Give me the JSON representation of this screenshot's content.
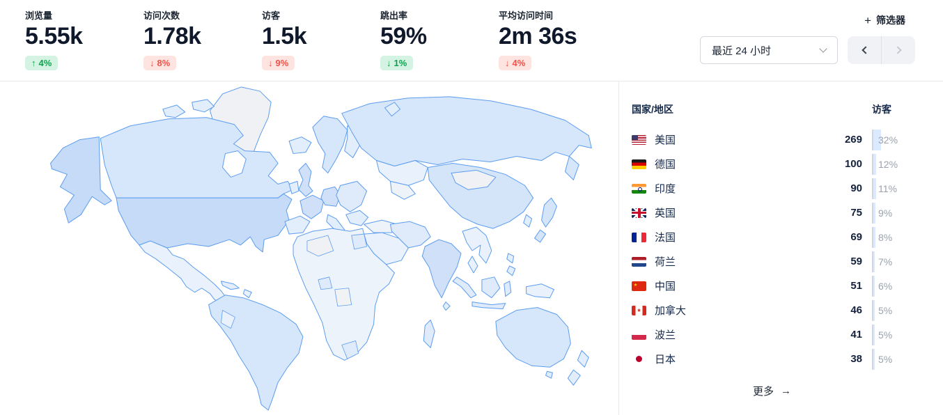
{
  "stats": [
    {
      "label": "浏览量",
      "value": "5.55k",
      "arrow": "↑",
      "change": "4%",
      "trend": "pos"
    },
    {
      "label": "访问次数",
      "value": "1.78k",
      "arrow": "↓",
      "change": "8%",
      "trend": "neg"
    },
    {
      "label": "访客",
      "value": "1.5k",
      "arrow": "↓",
      "change": "9%",
      "trend": "neg"
    },
    {
      "label": "跳出率",
      "value": "59%",
      "arrow": "↓",
      "change": "1%",
      "trend": "pos"
    },
    {
      "label": "平均访问时间",
      "value": "2m 36s",
      "arrow": "↓",
      "change": "4%",
      "trend": "neg"
    }
  ],
  "controls": {
    "filter_plus": "+",
    "filter_label": "筛选器",
    "date_range": "最近 24 小时",
    "next_disabled": true
  },
  "countries_panel": {
    "header_country": "国家/地区",
    "header_visitors": "访客",
    "rows": [
      {
        "flag": "us",
        "name": "美国",
        "visitors": "269",
        "percent": "32%",
        "pct": 32
      },
      {
        "flag": "de",
        "name": "德国",
        "visitors": "100",
        "percent": "12%",
        "pct": 12
      },
      {
        "flag": "in",
        "name": "印度",
        "visitors": "90",
        "percent": "11%",
        "pct": 11
      },
      {
        "flag": "gb",
        "name": "英国",
        "visitors": "75",
        "percent": "9%",
        "pct": 9
      },
      {
        "flag": "fr",
        "name": "法国",
        "visitors": "69",
        "percent": "8%",
        "pct": 8
      },
      {
        "flag": "nl",
        "name": "荷兰",
        "visitors": "59",
        "percent": "7%",
        "pct": 7
      },
      {
        "flag": "cn",
        "name": "中国",
        "visitors": "51",
        "percent": "6%",
        "pct": 6
      },
      {
        "flag": "ca",
        "name": "加拿大",
        "visitors": "46",
        "percent": "5%",
        "pct": 5
      },
      {
        "flag": "pl",
        "name": "波兰",
        "visitors": "41",
        "percent": "5%",
        "pct": 5
      },
      {
        "flag": "jp",
        "name": "日本",
        "visitors": "38",
        "percent": "5%",
        "pct": 5
      }
    ],
    "more_label": "更多",
    "more_arrow": "→"
  },
  "colors": {
    "positive_bg": "#d4f3e2",
    "positive_text": "#12a150",
    "negative_bg": "#fde4e1",
    "negative_text": "#ef5349",
    "map_stroke": "#5b9cf0",
    "map_high": "#c5dbf7",
    "map_mid": "#d7e7fb",
    "map_low": "#e3eefc",
    "map_none": "#f0f1f4",
    "pct_bar": "#dbeafe"
  }
}
